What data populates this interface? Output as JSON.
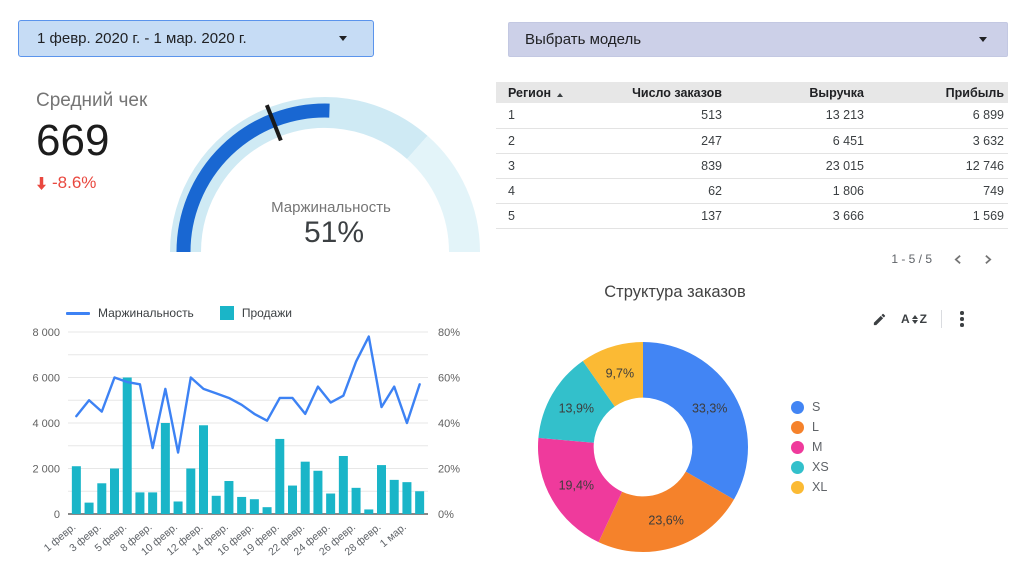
{
  "controls": {
    "date_range": {
      "value": "1 февр. 2020 г. - 1 мар. 2020 г."
    },
    "model_select": {
      "value": "Выбрать модель"
    }
  },
  "scorecard": {
    "title": "Средний чек",
    "value": "669",
    "delta": "-8.6%",
    "delta_direction": "down"
  },
  "table": {
    "columns": [
      {
        "label": "Регион",
        "align": "left",
        "width": 130,
        "sort": "asc"
      },
      {
        "label": "Число заказов",
        "align": "right",
        "width": 100
      },
      {
        "label": "Выручка",
        "align": "right",
        "width": 142
      },
      {
        "label": "Прибыль",
        "align": "right",
        "width": 140
      }
    ],
    "rows": [
      [
        "1",
        "513",
        "13 213",
        "6 899"
      ],
      [
        "2",
        "247",
        "6 451",
        "3 632"
      ],
      [
        "3",
        "839",
        "23 015",
        "12 746"
      ],
      [
        "4",
        "62",
        "1 806",
        "749"
      ],
      [
        "5",
        "137",
        "3 666",
        "1 569"
      ]
    ],
    "pagination": {
      "label": "1 - 5 / 5"
    }
  },
  "donut_toolbar": {
    "sort_a": "A",
    "sort_z": "Z"
  },
  "chart_data": [
    {
      "id": "margin-gauge",
      "type": "gauge",
      "label": "Маржинальность",
      "display": "51%",
      "value_pct": 51,
      "target_pct": 38,
      "color": "#1967d2",
      "ranges": [
        {
          "from": 0,
          "to": 73,
          "color": "#cfeaf4"
        },
        {
          "from": 73,
          "to": 100,
          "color": "#e3f4f9"
        }
      ]
    },
    {
      "id": "sales-margin-combo",
      "type": "bar+line",
      "grid": true,
      "legend_position": "top",
      "categories": [
        "1 февр.",
        "2 февр.",
        "3 февр.",
        "4 февр.",
        "5 февр.",
        "6 февр.",
        "8 февр.",
        "9 февр.",
        "10 февр.",
        "11 февр.",
        "12 февр.",
        "13 февр.",
        "14 февр.",
        "15 февр.",
        "16 февр.",
        "17 февр.",
        "19 февр.",
        "20 февр.",
        "21 февр.",
        "22 февр.",
        "23 февр.",
        "24 февр.",
        "25 февр.",
        "26 февр.",
        "27 февр.",
        "28 февр.",
        "29 февр.",
        "1 мар."
      ],
      "x_axis": {
        "visible_labels": [
          "1 февр.",
          "3 февр.",
          "5 февр.",
          "8 февр.",
          "10 февр.",
          "12 февр.",
          "14 февр.",
          "16 февр.",
          "19 февр.",
          "22 февр.",
          "24 февр.",
          "26 февр.",
          "28 февр.",
          "1 мар."
        ]
      },
      "left_axis": {
        "min": 0,
        "max": 8000,
        "ticks": [
          "8 000",
          "6 000",
          "4 000",
          "2 000",
          "0"
        ]
      },
      "right_axis": {
        "min": 0,
        "max": 80,
        "ticks": [
          "80%",
          "60%",
          "40%",
          "20%",
          "0%"
        ]
      },
      "series": [
        {
          "name": "Маржинальность",
          "type": "line",
          "axis": "right",
          "color": "#3d82f4",
          "values": [
            43,
            50,
            45,
            60,
            58,
            57,
            29,
            55,
            27,
            60,
            55,
            53,
            51,
            48,
            44,
            41,
            51,
            51,
            44,
            56,
            49,
            52,
            67,
            78,
            47,
            56,
            40,
            57
          ]
        },
        {
          "name": "Продажи",
          "type": "bar",
          "axis": "left",
          "color": "#1ab5c8",
          "values": [
            2100,
            500,
            1350,
            2000,
            6000,
            950,
            950,
            4000,
            550,
            2000,
            3900,
            800,
            1450,
            750,
            650,
            300,
            3300,
            1250,
            2300,
            1900,
            900,
            2550,
            1150,
            200,
            2150,
            1500,
            1400,
            1000
          ]
        }
      ]
    },
    {
      "id": "order-structure-donut",
      "type": "pie",
      "title": "Структура заказов",
      "labels": [
        "S",
        "L",
        "M",
        "XS",
        "XL"
      ],
      "values": [
        33.3,
        23.6,
        19.4,
        13.9,
        9.7
      ],
      "display_labels": [
        "33,3%",
        "23,6%",
        "19,4%",
        "13,9%",
        "9,7%"
      ],
      "colors": [
        "#4285f4",
        "#f5822b",
        "#ef3a9c",
        "#33c0cb",
        "#fbba34"
      ],
      "inner_radius_ratio": 0.47,
      "start_angle": "top",
      "direction": "clockwise",
      "legend_position": "right"
    }
  ]
}
